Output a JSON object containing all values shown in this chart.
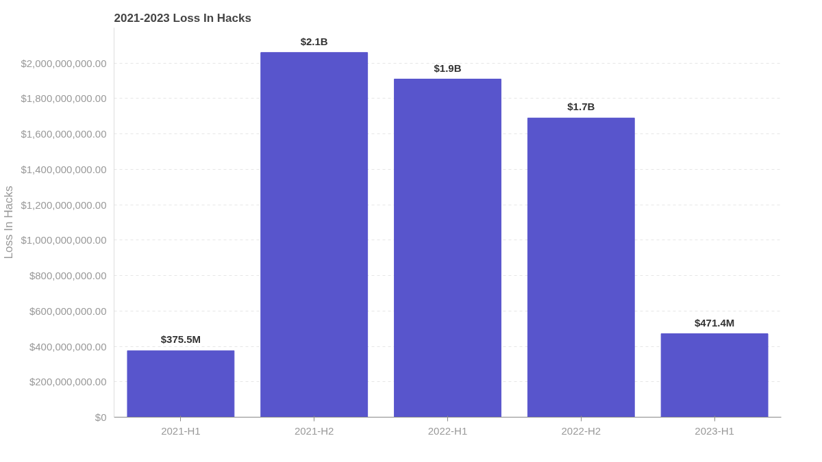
{
  "chart_data": {
    "type": "bar",
    "title": "2021-2023 Loss In Hacks",
    "ylabel": "Loss In Hacks",
    "categories": [
      "2021-H1",
      "2021-H2",
      "2022-H1",
      "2022-H2",
      "2023-H1"
    ],
    "values": [
      375500000,
      2060000000,
      1910000000,
      1690000000,
      471400000
    ],
    "value_labels": [
      "$375.5M",
      "$2.1B",
      "$1.9B",
      "$1.7B",
      "$471.4M"
    ],
    "color": "#5855cc",
    "ylim": [
      0,
      2200000000
    ],
    "yticks": [
      {
        "value": 0,
        "label": "$0"
      },
      {
        "value": 200000000,
        "label": "$200,000,000.00"
      },
      {
        "value": 400000000,
        "label": "$400,000,000.00"
      },
      {
        "value": 600000000,
        "label": "$600,000,000.00"
      },
      {
        "value": 800000000,
        "label": "$800,000,000.00"
      },
      {
        "value": 1000000000,
        "label": "$1,000,000,000.00"
      },
      {
        "value": 1200000000,
        "label": "$1,200,000,000.00"
      },
      {
        "value": 1400000000,
        "label": "$1,400,000,000.00"
      },
      {
        "value": 1600000000,
        "label": "$1,600,000,000.00"
      },
      {
        "value": 1800000000,
        "label": "$1,800,000,000.00"
      },
      {
        "value": 2000000000,
        "label": "$2,000,000,000.00"
      }
    ],
    "grid": "y"
  }
}
